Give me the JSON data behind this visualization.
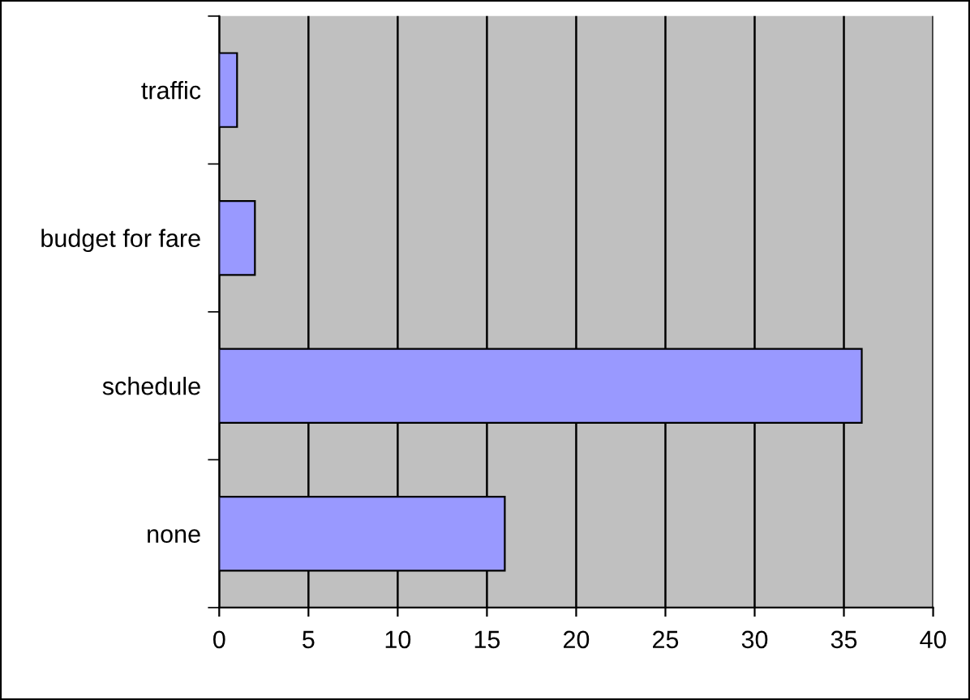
{
  "chart_data": {
    "type": "bar",
    "orientation": "horizontal",
    "categories": [
      "traffic",
      "budget for fare",
      "schedule",
      "none"
    ],
    "values": [
      1,
      2,
      36,
      16
    ],
    "color": "#9999ff",
    "xlim": [
      0,
      40
    ],
    "xticks": [
      0,
      5,
      10,
      15,
      20,
      25,
      30,
      35,
      40
    ],
    "grid": "x",
    "legend": false
  }
}
